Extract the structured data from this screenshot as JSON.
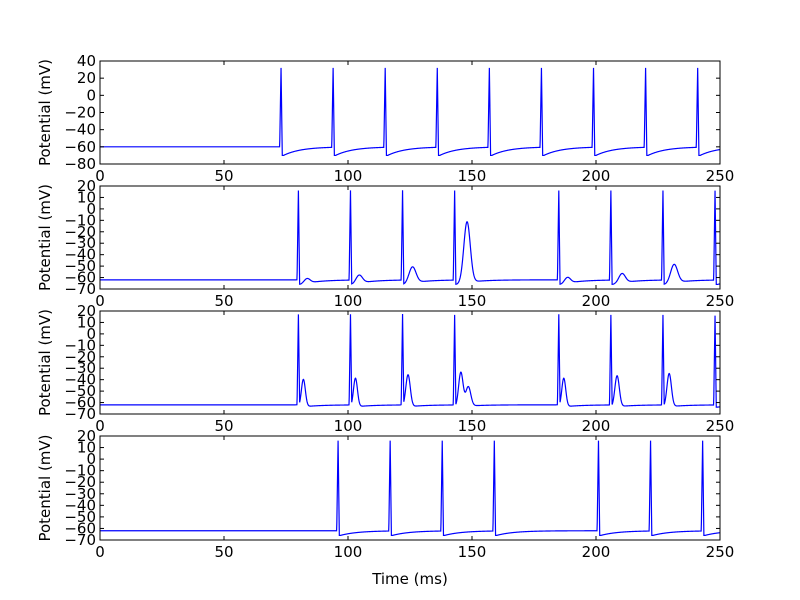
{
  "chart_data": [
    {
      "type": "line",
      "ylabel": "Potential (mV)",
      "xlabel": "",
      "xlim": [
        0,
        250
      ],
      "ylim": [
        -80,
        40
      ],
      "xticks": [
        0,
        50,
        100,
        150,
        200,
        250
      ],
      "yticks": [
        40,
        20,
        0,
        -20,
        -40,
        -60,
        -80
      ],
      "xtick_labels": [
        "0",
        "50",
        "100",
        "150",
        "200",
        "250"
      ],
      "ytick_labels": [
        "40",
        "20",
        "0",
        "−20",
        "−40",
        "−60",
        "−80"
      ],
      "line_color": "#0000ff",
      "rest": -60,
      "spikes": [
        {
          "t": 73,
          "peak": 32,
          "ahp": -70
        },
        {
          "t": 94,
          "peak": 32,
          "ahp": -70
        },
        {
          "t": 115,
          "peak": 32,
          "ahp": -70
        },
        {
          "t": 136,
          "peak": 32,
          "ahp": -70
        },
        {
          "t": 157,
          "peak": 32,
          "ahp": -70
        },
        {
          "t": 178,
          "peak": 32,
          "ahp": -70
        },
        {
          "t": 199,
          "peak": 32,
          "ahp": -70
        },
        {
          "t": 220,
          "peak": 32,
          "ahp": -70
        },
        {
          "t": 241,
          "peak": 32,
          "ahp": -70
        }
      ],
      "bumps": []
    },
    {
      "type": "line",
      "ylabel": "Potential (mV)",
      "xlabel": "",
      "xlim": [
        0,
        250
      ],
      "ylim": [
        -70,
        20
      ],
      "xticks": [
        0,
        50,
        100,
        150,
        200,
        250
      ],
      "yticks": [
        20,
        10,
        0,
        -10,
        -20,
        -30,
        -40,
        -50,
        -60,
        -70
      ],
      "xtick_labels": [
        "0",
        "50",
        "100",
        "150",
        "200",
        "250"
      ],
      "ytick_labels": [
        "20",
        "10",
        "0",
        "−10",
        "−20",
        "−30",
        "−40",
        "−50",
        "−60",
        "−70"
      ],
      "line_color": "#0000ff",
      "rest": -62,
      "spikes": [
        {
          "t": 80,
          "peak": 16,
          "ahp": -66
        },
        {
          "t": 101,
          "peak": 16,
          "ahp": -66
        },
        {
          "t": 122,
          "peak": 16,
          "ahp": -66
        },
        {
          "t": 143,
          "peak": 16,
          "ahp": -66
        },
        {
          "t": 185,
          "peak": 16,
          "ahp": -66
        },
        {
          "t": 206,
          "peak": 16,
          "ahp": -66
        },
        {
          "t": 227,
          "peak": 16,
          "ahp": -66
        },
        {
          "t": 248,
          "peak": 16,
          "ahp": -66
        }
      ],
      "bumps": [
        {
          "t": 83.5,
          "v": -58,
          "w": 1.2
        },
        {
          "t": 104.5,
          "v": -55,
          "w": 1.3
        },
        {
          "t": 126,
          "v": -48,
          "w": 1.4
        },
        {
          "t": 148,
          "v": -9,
          "w": 1.3
        },
        {
          "t": 188.5,
          "v": -57,
          "w": 1.2
        },
        {
          "t": 210.5,
          "v": -54,
          "w": 1.3
        },
        {
          "t": 231.5,
          "v": -46,
          "w": 1.4
        }
      ]
    },
    {
      "type": "line",
      "ylabel": "Potential (mV)",
      "xlabel": "",
      "xlim": [
        0,
        250
      ],
      "ylim": [
        -70,
        20
      ],
      "xticks": [
        0,
        50,
        100,
        150,
        200,
        250
      ],
      "yticks": [
        20,
        10,
        0,
        -10,
        -20,
        -30,
        -40,
        -50,
        -60,
        -70
      ],
      "xtick_labels": [
        "0",
        "50",
        "100",
        "150",
        "200",
        "250"
      ],
      "ytick_labels": [
        "20",
        "10",
        "0",
        "−10",
        "−20",
        "−30",
        "−40",
        "−50",
        "−60",
        "−70"
      ],
      "line_color": "#0000ff",
      "rest": -62,
      "spikes": [
        {
          "t": 80,
          "peak": 16,
          "ahp": -64
        },
        {
          "t": 101,
          "peak": 16,
          "ahp": -64
        },
        {
          "t": 122,
          "peak": 16,
          "ahp": -64
        },
        {
          "t": 143,
          "peak": 16,
          "ahp": -64
        },
        {
          "t": 185,
          "peak": 16,
          "ahp": -64
        },
        {
          "t": 206,
          "peak": 16,
          "ahp": -64
        },
        {
          "t": 227,
          "peak": 16,
          "ahp": -64
        },
        {
          "t": 248,
          "peak": 16,
          "ahp": -64
        }
      ],
      "bumps": [
        {
          "t": 82,
          "v": -38,
          "w": 0.8
        },
        {
          "t": 103,
          "v": -37,
          "w": 0.8
        },
        {
          "t": 124.2,
          "v": -34,
          "w": 0.9
        },
        {
          "t": 145.5,
          "v": -32,
          "w": 0.9
        },
        {
          "t": 148.5,
          "v": -45,
          "w": 1.0
        },
        {
          "t": 187,
          "v": -37,
          "w": 0.8
        },
        {
          "t": 208.5,
          "v": -35,
          "w": 0.9
        },
        {
          "t": 229.5,
          "v": -33,
          "w": 0.9
        }
      ]
    },
    {
      "type": "line",
      "ylabel": "Potential (mV)",
      "xlabel": "Time (ms)",
      "xlim": [
        0,
        250
      ],
      "ylim": [
        -70,
        20
      ],
      "xticks": [
        0,
        50,
        100,
        150,
        200,
        250
      ],
      "yticks": [
        20,
        10,
        0,
        -10,
        -20,
        -30,
        -40,
        -50,
        -60,
        -70
      ],
      "xtick_labels": [
        "0",
        "50",
        "100",
        "150",
        "200",
        "250"
      ],
      "ytick_labels": [
        "20",
        "10",
        "0",
        "−10",
        "−20",
        "−30",
        "−40",
        "−50",
        "−60",
        "−70"
      ],
      "line_color": "#0000ff",
      "rest": -62,
      "spikes": [
        {
          "t": 96,
          "peak": 16,
          "ahp": -66
        },
        {
          "t": 117,
          "peak": 16,
          "ahp": -66
        },
        {
          "t": 138,
          "peak": 16,
          "ahp": -66
        },
        {
          "t": 159,
          "peak": 16,
          "ahp": -66
        },
        {
          "t": 201,
          "peak": 16,
          "ahp": -66
        },
        {
          "t": 222,
          "peak": 16,
          "ahp": -66
        },
        {
          "t": 243,
          "peak": 16,
          "ahp": -66
        }
      ],
      "bumps": []
    }
  ]
}
